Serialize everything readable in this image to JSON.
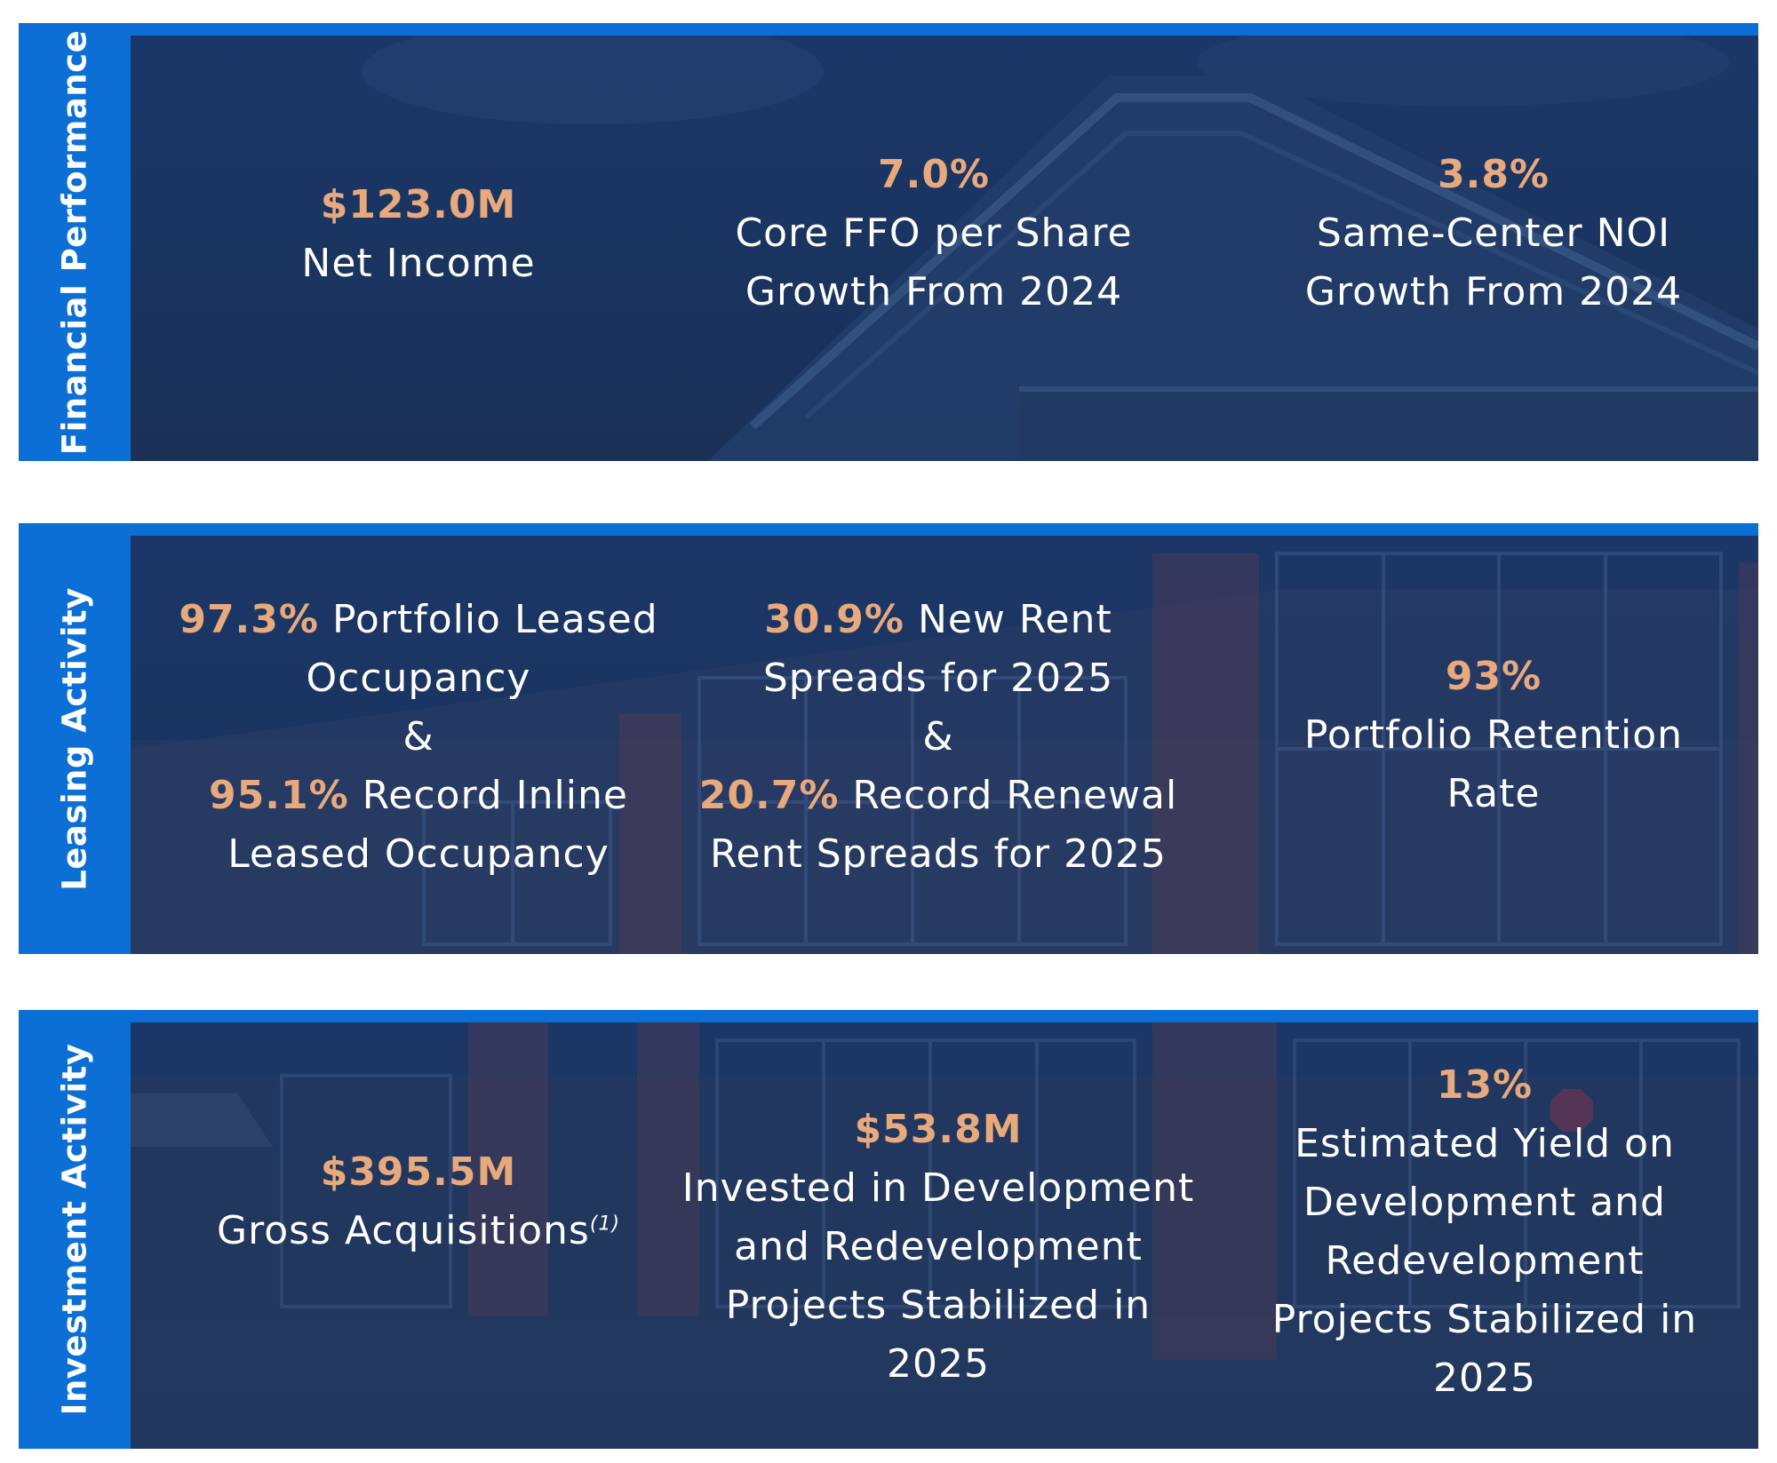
{
  "sections": [
    {
      "label": "Financial Performance",
      "metrics": [
        {
          "value": "$123.0M",
          "lines": [
            "Net Income"
          ]
        },
        {
          "value": "7.0%",
          "lines": [
            "Core FFO per Share",
            "Growth From 2024"
          ]
        },
        {
          "value": "3.8%",
          "lines": [
            "Same-Center NOI",
            "Growth From 2024"
          ]
        }
      ]
    },
    {
      "label": "Leasing Activity",
      "metrics": [
        {
          "value1": "97.3%",
          "text1a": " Portfolio Leased",
          "text1b": "Occupancy",
          "amp": "&",
          "value2": "95.1%",
          "text2a": " Record Inline",
          "text2b": "Leased Occupancy"
        },
        {
          "value1": "30.9%",
          "text1a": " New Rent",
          "text1b": "Spreads for 2025",
          "amp": "&",
          "value2": "20.7%",
          "text2a": " Record Renewal",
          "text2b": "Rent Spreads for 2025"
        },
        {
          "value": "93%",
          "lines": [
            "Portfolio Retention",
            "Rate"
          ]
        }
      ]
    },
    {
      "label": "Investment Activity",
      "metrics": [
        {
          "value": "$395.5M",
          "lines": [
            "Gross Acquisitions"
          ],
          "footnote": "(1)"
        },
        {
          "value": "$53.8M",
          "lines": [
            "Invested in Development",
            "and Redevelopment",
            "Projects Stabilized in 2025"
          ]
        },
        {
          "value": "13%",
          "lines": [
            "Estimated Yield on",
            "Development and",
            "Redevelopment",
            "Projects Stabilized in",
            "2025"
          ]
        }
      ]
    }
  ],
  "colors": {
    "tab_blue": "#0b6fd6",
    "panel_navy": "#1a345f",
    "value_orange": "#e8a97c",
    "text_white": "#ffffff"
  }
}
